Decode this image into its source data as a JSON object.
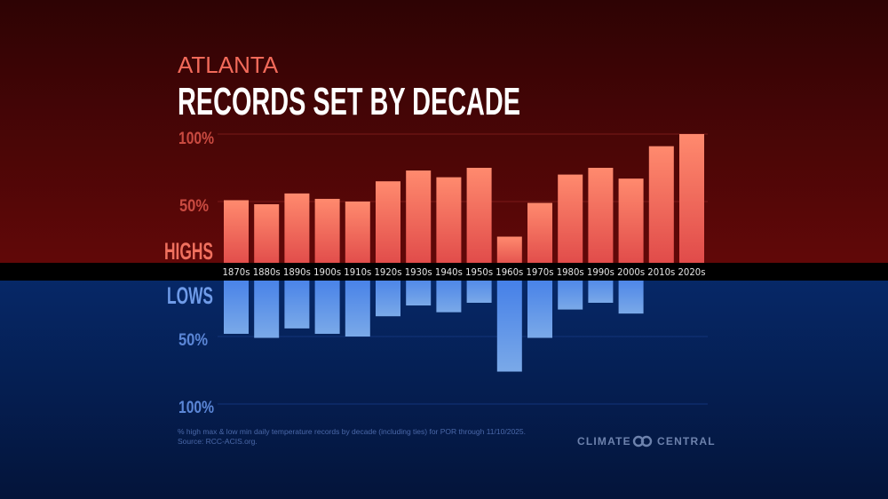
{
  "chart_data": {
    "type": "bar",
    "subtitle": "ATLANTA",
    "title": "RECORDS SET BY DECADE",
    "categories": [
      "1870s",
      "1880s",
      "1890s",
      "1900s",
      "1910s",
      "1920s",
      "1930s",
      "1940s",
      "1950s",
      "1960s",
      "1970s",
      "1980s",
      "1990s",
      "2000s",
      "2010s",
      "2020s"
    ],
    "series": [
      {
        "name": "HIGHS",
        "color": "#f0705e",
        "values": [
          51,
          48,
          56,
          52,
          50,
          65,
          73,
          68,
          75,
          24,
          49,
          70,
          75,
          67,
          91,
          100
        ]
      },
      {
        "name": "LOWS",
        "color": "#5b93e6",
        "values": [
          48,
          51,
          44,
          48,
          50,
          35,
          27,
          32,
          25,
          76,
          51,
          30,
          25,
          33,
          0,
          0
        ]
      }
    ],
    "ylim": [
      0,
      100
    ],
    "high_ticks": [
      "100%",
      "50%"
    ],
    "low_ticks": [
      "50%",
      "100%"
    ],
    "grid": true,
    "footnote": "% high max & low min daily temperature records by decade (including ties) for POR through 11/10/2025.",
    "source": "Source: RCC-ACIS.org.",
    "logo": "CLIMATE CENTRAL",
    "colors": {
      "top_bg": "#4a0606",
      "bottom_bg": "#06215a",
      "band": "#000000",
      "subtitle": "#f26a5a",
      "high_axis": "#c94a40",
      "low_axis": "#5b86d6"
    }
  }
}
